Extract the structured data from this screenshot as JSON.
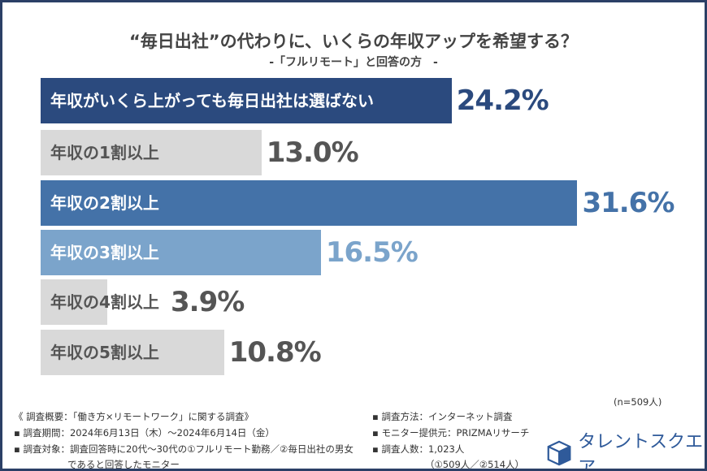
{
  "chart_data": {
    "type": "bar",
    "orientation": "horizontal",
    "title": "“毎日出社”の代わりに、いくらの年収アップを希望する？",
    "subtitle": "-「フルリモート」と回答の方　-",
    "categories": [
      "年収がいくら上がっても毎日出社は選ばない",
      "年収の1割以上",
      "年収の2割以上",
      "年収の3割以上",
      "年収の4割以上",
      "年収の5割以上"
    ],
    "values": [
      24.2,
      13.0,
      31.6,
      16.5,
      3.9,
      10.8
    ],
    "value_labels": [
      "24.2%",
      "13.0%",
      "31.6%",
      "16.5%",
      "3.9%",
      "10.8%"
    ],
    "bar_colors": [
      "#2b4a7e",
      "#d9d9d9",
      "#4472a8",
      "#7ba4cb",
      "#d9d9d9",
      "#d9d9d9"
    ],
    "label_colors": [
      "#ffffff",
      "#555555",
      "#ffffff",
      "#ffffff",
      "#555555",
      "#555555"
    ],
    "value_colors": [
      "#2b4a7e",
      "#555555",
      "#4472a8",
      "#7ba4cb",
      "#555555",
      "#555555"
    ],
    "xlim": [
      0,
      32
    ],
    "grid": false,
    "legend": "none"
  },
  "sample": "(n=509人)",
  "notes_left": [
    "《 調査概要：「働き方×リモートワーク」に関する調査》",
    "▪ 調査期間：2024年6月13日（木）～2024年6月14日（金）",
    "▪ 調査対象：調査回答時に20代～30代の①フルリモート勤務／②毎日出社の男女",
    "であると回答したモニター"
  ],
  "notes_right": [
    "▪ 調査方法：インターネット調査",
    "▪ モニター提供元：PRIZMAリサーチ",
    "▪ 調査人数：1,023人",
    "（①509人／②514人）"
  ],
  "logo": "タレントスクエア"
}
